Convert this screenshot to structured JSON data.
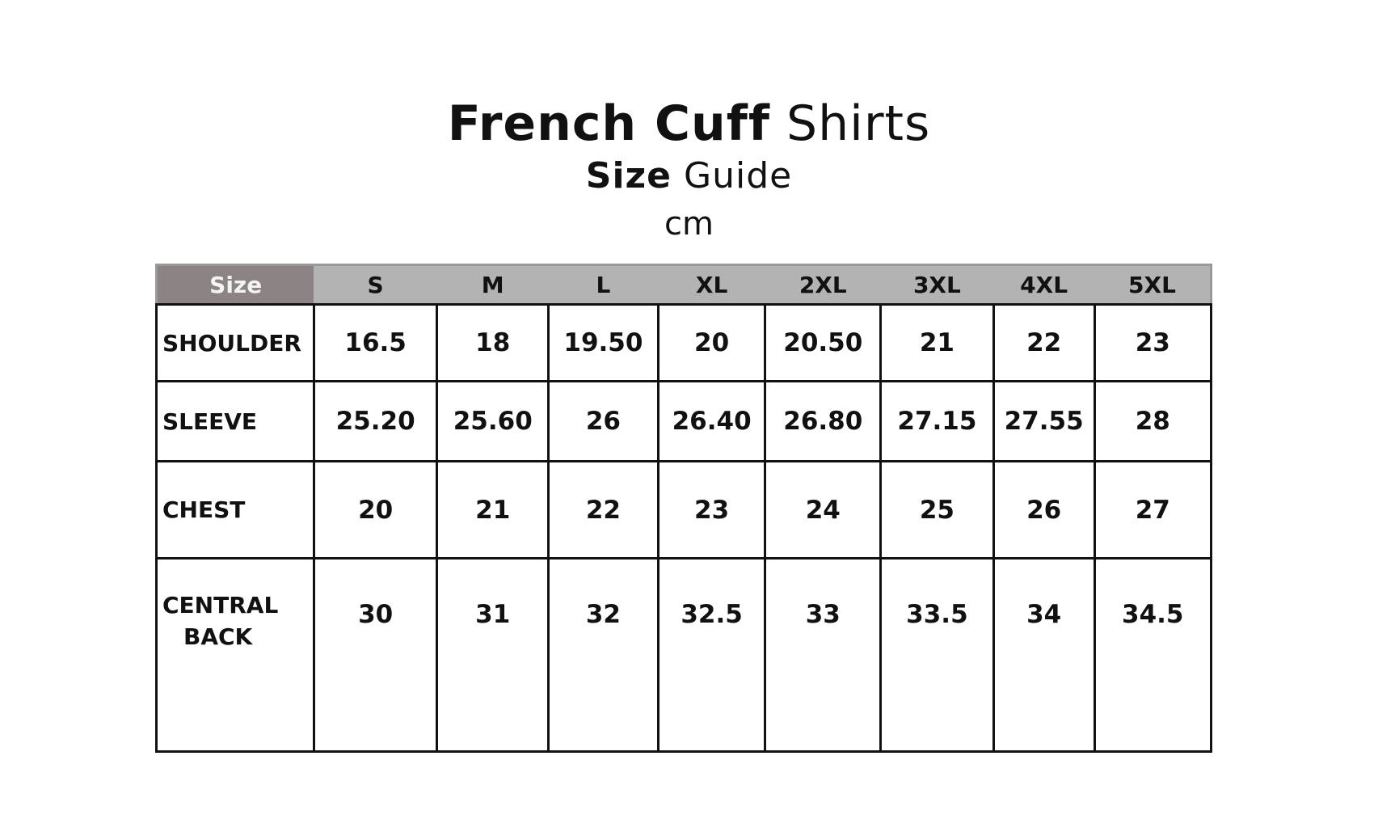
{
  "title": {
    "bold": "French Cuff",
    "regular": "Shirts"
  },
  "subtitle": {
    "bold": "Size",
    "regular": "Guide"
  },
  "unit": "cm",
  "table": {
    "corner": "Size",
    "sizes": [
      "S",
      "M",
      "L",
      "XL",
      "2XL",
      "3XL",
      "4XL",
      "5XL"
    ],
    "rows": [
      {
        "label": "SHOULDER",
        "values": [
          "16.5",
          "18",
          "19.50",
          "20",
          "20.50",
          "21",
          "22",
          "23"
        ]
      },
      {
        "label": "SLEEVE",
        "values": [
          "25.20",
          "25.60",
          "26",
          "26.40",
          "26.80",
          "27.15",
          "27.55",
          "28"
        ]
      },
      {
        "label": "CHEST",
        "values": [
          "20",
          "21",
          "22",
          "23",
          "24",
          "25",
          "26",
          "27"
        ]
      },
      {
        "label_line1": "CENTRAL",
        "label_line2": "BACK",
        "values": [
          "30",
          "31",
          "32",
          "32.5",
          "33",
          "33.5",
          "34",
          "34.5"
        ]
      }
    ]
  },
  "colors": {
    "header_bg": "#b3b3b3",
    "corner_bg": "#8c8484",
    "text": "#111111"
  }
}
